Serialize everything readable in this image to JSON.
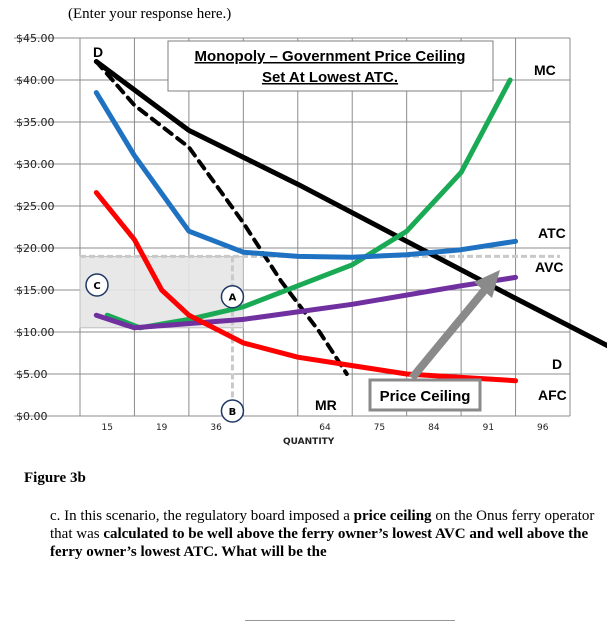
{
  "response_hint": "(Enter your response here.)",
  "figure_label": "Figure 3b",
  "question": {
    "prefix": "c. In this scenario, the regulatory board imposed a ",
    "bold1": "price ceiling",
    "mid": " on the Onus ferry operator that was ",
    "bold2": "calculated to be well above the ferry owner’s lowest AVC and well above the ferry owner’s lowest ATC. What will be the"
  },
  "chart_data": {
    "type": "line",
    "title": "Monopoly – Government Price Ceiling Set At Lowest ATC.",
    "xlabel": "QUANTITY",
    "ylabel": "",
    "x_ticks": [
      "15",
      "19",
      "36",
      "",
      "64",
      "75",
      "84",
      "91",
      "96"
    ],
    "y_ticks": [
      "$0.00",
      "$5.00",
      "$10.00",
      "$15.00",
      "$20.00",
      "$25.00",
      "$30.00",
      "$35.00",
      "$40.00",
      "$45.00"
    ],
    "ylim": [
      0,
      45
    ],
    "grid": true,
    "series": [
      {
        "name": "D",
        "color": "#000000",
        "style": "solid",
        "points": [
          [
            0.3,
            42.2
          ],
          [
            2,
            34
          ],
          [
            4,
            27.6
          ],
          [
            6,
            20.8
          ],
          [
            8,
            14
          ],
          [
            9.8,
            8
          ]
        ]
      },
      {
        "name": "MR",
        "color": "#000000",
        "style": "dashed",
        "points": [
          [
            0.3,
            42.2
          ],
          [
            1,
            37
          ],
          [
            2,
            32
          ],
          [
            3,
            23
          ],
          [
            3.7,
            16
          ],
          [
            4.4,
            10
          ],
          [
            4.9,
            5
          ]
        ]
      },
      {
        "name": "MC",
        "color": "#1aaa55",
        "style": "solid",
        "points": [
          [
            0.5,
            12
          ],
          [
            1.1,
            10.5
          ],
          [
            2,
            11.5
          ],
          [
            3,
            13
          ],
          [
            4,
            15.5
          ],
          [
            5,
            18
          ],
          [
            6,
            22
          ],
          [
            7,
            29
          ],
          [
            7.9,
            40
          ]
        ]
      },
      {
        "name": "ATC",
        "color": "#1f72c2",
        "style": "solid",
        "points": [
          [
            0.3,
            38.5
          ],
          [
            1,
            31
          ],
          [
            2,
            22
          ],
          [
            3,
            19.5
          ],
          [
            4,
            19
          ],
          [
            5,
            18.9
          ],
          [
            6,
            19.2
          ],
          [
            7,
            19.8
          ],
          [
            8,
            20.8
          ]
        ]
      },
      {
        "name": "AVC",
        "color": "#7030a0",
        "style": "solid",
        "points": [
          [
            0.3,
            12
          ],
          [
            1,
            10.5
          ],
          [
            3,
            11.5
          ],
          [
            5,
            13.3
          ],
          [
            7,
            15.5
          ],
          [
            8,
            16.5
          ]
        ]
      },
      {
        "name": "AFC",
        "color": "#ff0000",
        "style": "solid",
        "points": [
          [
            0.3,
            26.6
          ],
          [
            1,
            21
          ],
          [
            1.5,
            15
          ],
          [
            2,
            12
          ],
          [
            3,
            8.7
          ],
          [
            4,
            7
          ],
          [
            5,
            6
          ],
          [
            6,
            5
          ],
          [
            7,
            4.6
          ],
          [
            8,
            4.2
          ]
        ]
      }
    ],
    "labels": {
      "D_top": "D",
      "D_bottom": "D",
      "MC": "MC",
      "ATC": "ATC",
      "AVC": "AVC",
      "MR": "MR",
      "AFC": "AFC"
    },
    "points": [
      {
        "label": "A",
        "x": 2.8,
        "y": 14.2
      },
      {
        "label": "B",
        "x": 2.8,
        "y": 0.6
      },
      {
        "label": "C",
        "x": 0.15,
        "y": 15.8
      }
    ],
    "price_ceiling": {
      "label": "Price Ceiling",
      "y": 19
    }
  }
}
